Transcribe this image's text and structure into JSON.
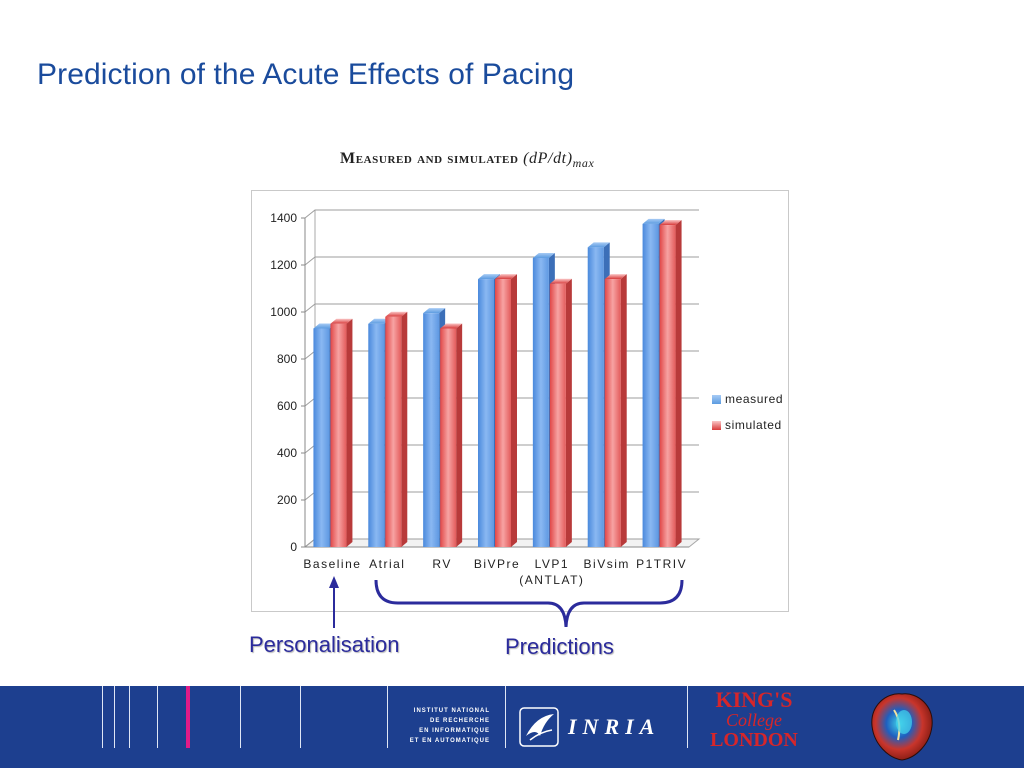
{
  "slide": {
    "title": "Prediction of the Acute Effects of Pacing"
  },
  "chart_heading": {
    "caps_text": "Measured and simulated",
    "formula": "(dP/dt)",
    "subscript": "max"
  },
  "chart_data": {
    "type": "bar",
    "title": "Measured and simulated (dP/dt)max",
    "categories": [
      "Baseline",
      "Atrial",
      "RV",
      "BiVPre",
      "LVP1\n(ANTLAT)",
      "BiVsim",
      "P1TRIV"
    ],
    "series": [
      {
        "name": "measured",
        "values": [
          930,
          950,
          995,
          1140,
          1230,
          1275,
          1375
        ],
        "color": "#5b9be0"
      },
      {
        "name": "simulated",
        "values": [
          950,
          980,
          930,
          1140,
          1120,
          1140,
          1370
        ],
        "color": "#e35b5b"
      }
    ],
    "yticks": [
      0,
      200,
      400,
      600,
      800,
      1000,
      1200,
      1400
    ],
    "ylim": [
      0,
      1400
    ],
    "xlabel": "",
    "ylabel": "",
    "grid": true,
    "legend_position": "right"
  },
  "annotations": {
    "personalisation": "Personalisation",
    "predictions": "Predictions"
  },
  "footer": {
    "institute_lines": [
      "INSTITUT NATIONAL",
      "DE RECHERCHE",
      "EN INFORMATIQUE",
      "ET EN AUTOMATIQUE"
    ],
    "inria_text": "INRIA",
    "kcl_lines": [
      "KING'S",
      "College",
      "LONDON"
    ],
    "icons": [
      "inria-bird-icon",
      "heart-model-icon"
    ]
  },
  "colors": {
    "title": "#1a4b9c",
    "annotation": "#2b2b9c",
    "footer_bg": "#1d3f8f",
    "accent_pink": "#e01b88",
    "kcl_red": "#d6262a"
  }
}
